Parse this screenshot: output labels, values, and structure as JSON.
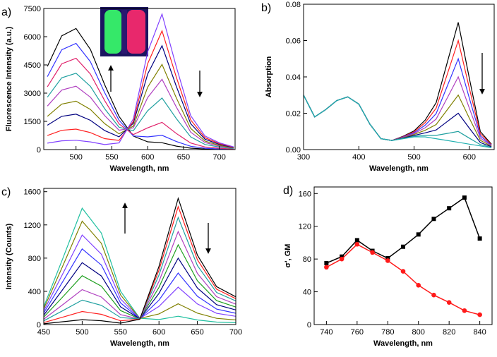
{
  "chart_data": [
    {
      "type": "line",
      "panel_label": "a)",
      "xlabel": "Wavelength, nm",
      "ylabel": "Fluorescence Intensity (a.u.)",
      "xlim": [
        455,
        722
      ],
      "xticks": [
        500,
        550,
        600,
        650,
        700
      ],
      "ylim": [
        0,
        7500
      ],
      "yticks": [
        0,
        1500,
        3000,
        4500,
        6000,
        7500
      ],
      "x": [
        460,
        480,
        500,
        520,
        540,
        560,
        580,
        600,
        620,
        640,
        660,
        680,
        700,
        720
      ],
      "series": [
        {
          "color": "#000000",
          "values": [
            4420,
            6045,
            6435,
            5330,
            3445,
            1764,
            716,
            411,
            365,
            183,
            75,
            30,
            15,
            6
          ]
        },
        {
          "color": "#3333ff",
          "values": [
            3876,
            5301,
            5643,
            4674,
            3021,
            1560,
            724,
            675,
            757,
            427,
            175,
            70,
            35,
            14
          ]
        },
        {
          "color": "#e0206a",
          "values": [
            3332,
            4557,
            4851,
            4018,
            2597,
            1365,
            798,
            1155,
            1449,
            854,
            350,
            140,
            70,
            28
          ]
        },
        {
          "color": "#20a0a0",
          "values": [
            2788,
            3813,
            4059,
            3362,
            2173,
            1188,
            1004,
            2067,
            2741,
            1647,
            675,
            270,
            135,
            54
          ]
        },
        {
          "color": "#b040c0",
          "values": [
            2312,
            3162,
            3366,
            2788,
            1802,
            1029,
            1154,
            2766,
            3734,
            2257,
            925,
            370,
            185,
            74
          ]
        },
        {
          "color": "#808000",
          "values": [
            1768,
            2418,
            2574,
            2132,
            1378,
            837,
            1250,
            3318,
            4526,
            2745,
            1125,
            450,
            225,
            90
          ]
        },
        {
          "color": "#000080",
          "values": [
            1292,
            1767,
            1881,
            1558,
            1007,
            678,
            1400,
            4017,
            5519,
            3355,
            1375,
            550,
            275,
            110
          ]
        },
        {
          "color": "#ff2020",
          "values": [
            748,
            1023,
            1089,
            902,
            583,
            486,
            1496,
            4569,
            6311,
            3843,
            1575,
            630,
            315,
            126
          ]
        },
        {
          "color": "#8040ff",
          "values": [
            340,
            465,
            495,
            410,
            265,
            351,
            1634,
            5199,
            7205,
            4392,
            1800,
            720,
            360,
            144
          ]
        }
      ]
    },
    {
      "type": "line",
      "panel_label": "b)",
      "xlabel": "Wavelength, nm",
      "ylabel": "Absorption",
      "xlim": [
        300,
        645
      ],
      "xticks": [
        300,
        400,
        500,
        600
      ],
      "ylim": [
        0,
        0.08
      ],
      "yticks": [
        {
          "value": 0,
          "label": "0.00"
        },
        {
          "value": 0.02,
          "label": "0.02"
        },
        {
          "value": 0.04,
          "label": "0.04"
        },
        {
          "value": 0.06,
          "label": "0.06"
        },
        {
          "value": 0.08,
          "label": "0.08"
        }
      ],
      "x": [
        300,
        320,
        340,
        360,
        380,
        400,
        420,
        440,
        460,
        480,
        500,
        520,
        540,
        560,
        580,
        600,
        620,
        640
      ],
      "series": [
        {
          "color": "#000000",
          "values": [
            0.03,
            0.018,
            0.022,
            0.027,
            0.029,
            0.025,
            0.014,
            0.006,
            0.005,
            0.0073,
            0.0103,
            0.0162,
            0.0258,
            0.0479,
            0.07,
            0.0393,
            0.0099,
            0.003
          ]
        },
        {
          "color": "#ff2020",
          "values": [
            0.03,
            0.018,
            0.022,
            0.027,
            0.029,
            0.025,
            0.014,
            0.006,
            0.005,
            0.0071,
            0.0098,
            0.0148,
            0.0228,
            0.0414,
            0.06,
            0.0338,
            0.0087,
            0.0027
          ]
        },
        {
          "color": "#3333ff",
          "values": [
            0.03,
            0.018,
            0.022,
            0.027,
            0.029,
            0.025,
            0.014,
            0.006,
            0.005,
            0.0069,
            0.0093,
            0.0134,
            0.0198,
            0.0349,
            0.05,
            0.0283,
            0.0075,
            0.0024
          ]
        },
        {
          "color": "#b040c0",
          "values": [
            0.03,
            0.018,
            0.022,
            0.027,
            0.029,
            0.025,
            0.014,
            0.006,
            0.005,
            0.0067,
            0.0088,
            0.012,
            0.0168,
            0.0284,
            0.04,
            0.0228,
            0.0063,
            0.0021
          ]
        },
        {
          "color": "#808000",
          "values": [
            0.03,
            0.018,
            0.022,
            0.027,
            0.029,
            0.025,
            0.014,
            0.006,
            0.005,
            0.0065,
            0.0083,
            0.0106,
            0.0138,
            0.0219,
            0.03,
            0.0173,
            0.0051,
            0.0018
          ]
        },
        {
          "color": "#000080",
          "values": [
            0.03,
            0.018,
            0.022,
            0.027,
            0.029,
            0.025,
            0.014,
            0.006,
            0.005,
            0.0063,
            0.0078,
            0.0092,
            0.0108,
            0.0154,
            0.02,
            0.0118,
            0.0039,
            0.0015
          ]
        },
        {
          "color": "#20a0a0",
          "values": [
            0.03,
            0.018,
            0.022,
            0.027,
            0.029,
            0.025,
            0.014,
            0.006,
            0.005,
            0.0061,
            0.0073,
            0.0078,
            0.0078,
            0.0089,
            0.01,
            0.0063,
            0.0027,
            0.0012
          ]
        },
        {
          "color": "#20b0b0",
          "values": [
            0.03,
            0.018,
            0.022,
            0.027,
            0.029,
            0.025,
            0.014,
            0.006,
            0.005,
            0.006,
            0.007,
            0.007,
            0.006,
            0.005,
            0.004,
            0.003,
            0.002,
            0.001
          ]
        }
      ]
    },
    {
      "type": "line",
      "panel_label": "c)",
      "xlabel": "Wavelength, nm",
      "ylabel": "Intensity (Counts)",
      "xlim": [
        450,
        700
      ],
      "xticks": [
        450,
        500,
        550,
        600,
        650,
        700
      ],
      "ylim": [
        0,
        1640
      ],
      "yticks": [
        0,
        400,
        800,
        1200,
        1600
      ],
      "x": [
        450,
        475,
        500,
        525,
        550,
        575,
        600,
        625,
        650,
        675,
        700
      ],
      "series": [
        {
          "color": "#20c0a0",
          "values": [
            215,
            801,
            1401,
            1101,
            400,
            76,
            60,
            100,
            55,
            30,
            22
          ]
        },
        {
          "color": "#808000",
          "values": [
            191,
            711,
            1245,
            978,
            356,
            74,
            128,
            250,
            138,
            75,
            55
          ]
        },
        {
          "color": "#8040ff",
          "values": [
            165,
            616,
            1078,
            847,
            308,
            73,
            218,
            450,
            248,
            135,
            99
          ]
        },
        {
          "color": "#3333ff",
          "values": [
            140,
            521,
            911,
            716,
            260,
            71,
            294,
            620,
            341,
            186,
            136
          ]
        },
        {
          "color": "#000080",
          "values": [
            114,
            426,
            745,
            585,
            213,
            70,
            376,
            800,
            440,
            240,
            176
          ]
        },
        {
          "color": "#20a020",
          "values": [
            90,
            336,
            588,
            462,
            168,
            68,
            448,
            960,
            528,
            288,
            211
          ]
        },
        {
          "color": "#b040c0",
          "values": [
            65,
            241,
            421,
            331,
            120,
            66,
            519,
            1120,
            616,
            336,
            246
          ]
        },
        {
          "color": "#20a0a0",
          "values": [
            45,
            168,
            294,
            231,
            84,
            67,
            596,
            1290,
            710,
            387,
            284
          ]
        },
        {
          "color": "#ff2020",
          "values": [
            24,
            90,
            157,
            123,
            45,
            65,
            655,
            1420,
            781,
            426,
            312
          ]
        },
        {
          "color": "#000000",
          "values": [
            9,
            34,
            59,
            46,
            17,
            64,
            700,
            1520,
            836,
            456,
            334
          ]
        }
      ]
    },
    {
      "type": "line",
      "markers": true,
      "panel_label": "d)",
      "xlabel": "Wavelength, nm",
      "ylabel": "σ', GM",
      "xlim": [
        732,
        848
      ],
      "xticks": [
        740,
        760,
        780,
        800,
        820,
        840
      ],
      "ylim": [
        0,
        168
      ],
      "yticks": [
        0,
        40,
        80,
        120,
        160
      ],
      "x": [
        740,
        750,
        760,
        770,
        780,
        790,
        800,
        810,
        820,
        830,
        840
      ],
      "series": [
        {
          "color": "#000000",
          "marker": "square",
          "values": [
            75,
            83,
            103,
            90,
            81,
            95,
            110,
            129,
            142,
            155,
            105
          ]
        },
        {
          "color": "#ff1a1a",
          "marker": "circle",
          "values": [
            70,
            80,
            98,
            88,
            78,
            65,
            48,
            36,
            27,
            17,
            12
          ]
        }
      ]
    }
  ]
}
